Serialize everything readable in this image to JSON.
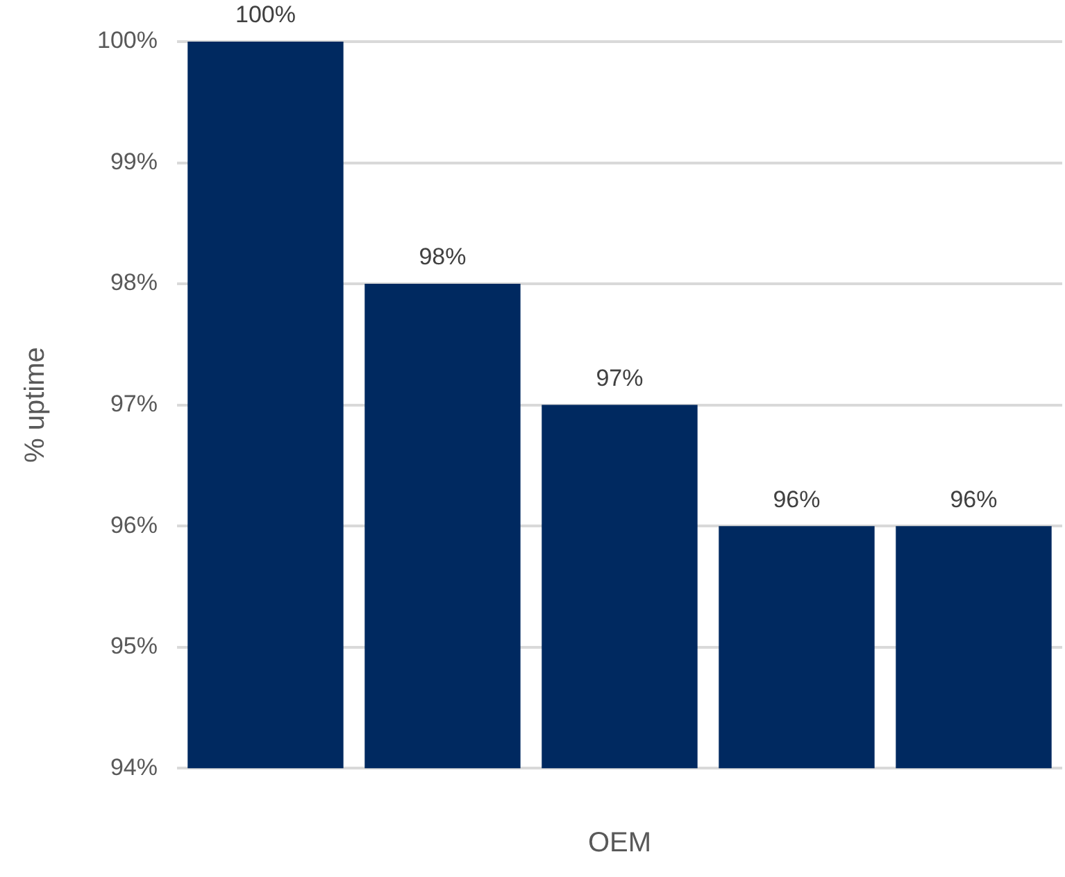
{
  "chart_data": {
    "type": "bar",
    "ylabel": "% uptime",
    "xlabel": "OEM",
    "categories": [
      null,
      null,
      null,
      null,
      null
    ],
    "values": [
      100,
      98,
      97,
      96,
      96
    ],
    "value_labels": [
      "100%",
      "98%",
      "97%",
      "96%",
      "96%"
    ],
    "color": "#002960",
    "ylim": [
      94,
      100
    ],
    "yticks": [
      {
        "value": 94,
        "label": "94%"
      },
      {
        "value": 95,
        "label": "95%"
      },
      {
        "value": 96,
        "label": "96%"
      },
      {
        "value": 97,
        "label": "97%"
      },
      {
        "value": 98,
        "label": "98%"
      },
      {
        "value": 99,
        "label": "99%"
      },
      {
        "value": 100,
        "label": "100%"
      }
    ],
    "grid": "y",
    "legend": false
  }
}
